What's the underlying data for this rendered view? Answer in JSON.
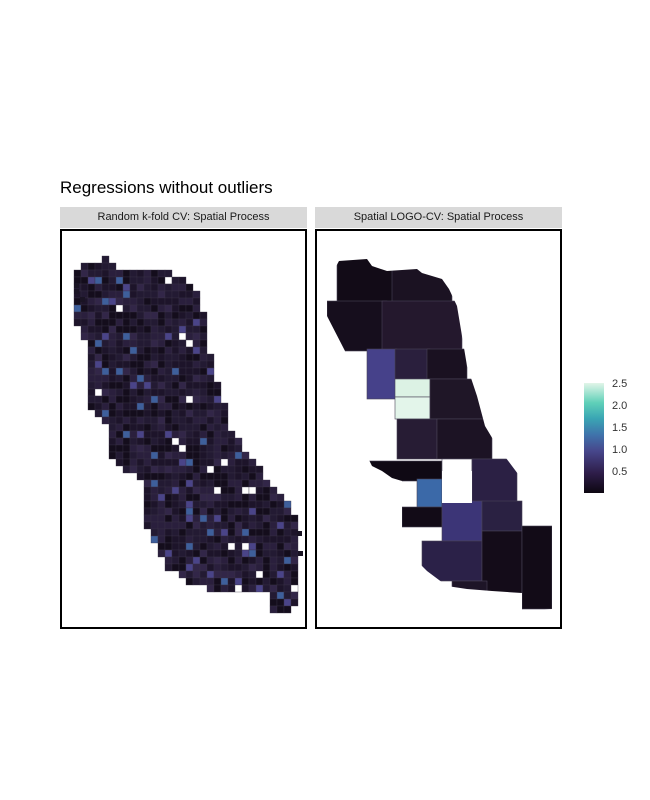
{
  "title": "Regressions without outliers",
  "panels": [
    {
      "label": "Random k-fold CV: Spatial Process"
    },
    {
      "label": "Spatial LOGO-CV: Spatial Process"
    }
  ],
  "legend": {
    "labels": [
      "2.5",
      "2.0",
      "1.5",
      "1.0",
      "0.5"
    ],
    "values": [
      2.5,
      2.0,
      1.5,
      1.0,
      0.5
    ],
    "range": [
      0.1,
      2.6
    ]
  },
  "colors": {
    "low": "#0d0711",
    "mid": "#47468b",
    "high": "#e1f5e8",
    "panel_border": "#000000",
    "strip_bg": "#d9d9d9"
  }
}
